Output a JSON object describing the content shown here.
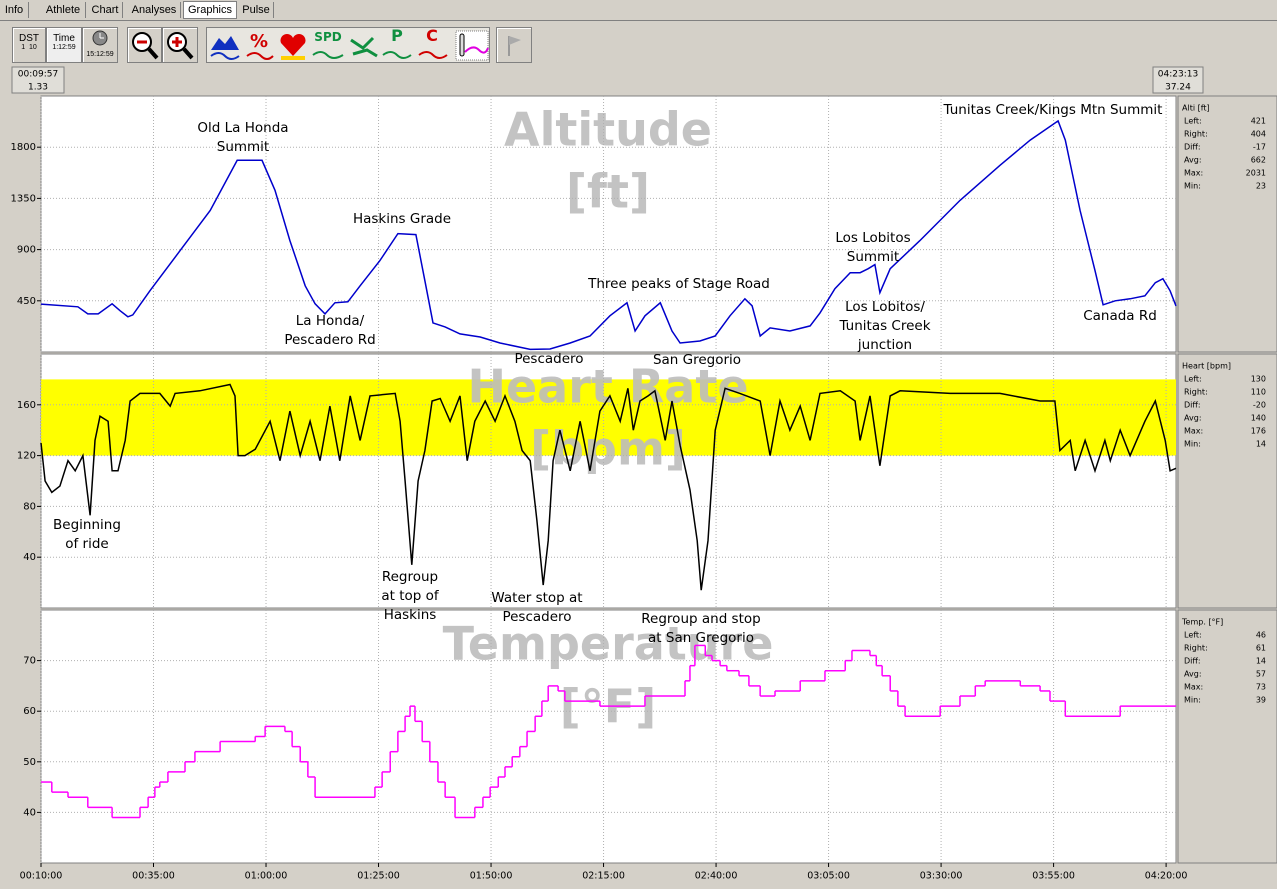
{
  "tabs": [
    "Info",
    "Athlete",
    "Chart",
    "Analyses",
    "Graphics",
    "Pulse"
  ],
  "toolbar": {
    "dst": [
      "DST",
      "1",
      "10"
    ],
    "time": [
      "Time",
      "1:12:59"
    ],
    "clock": "15:12:59",
    "icons": [
      "%",
      "SPD",
      "P",
      "C"
    ]
  },
  "range": {
    "start": [
      "00:09:57",
      "1.33"
    ],
    "end": [
      "04:23:13",
      "37.24"
    ]
  },
  "chart_data": [
    {
      "type": "line",
      "title": "Altitude",
      "unit": "[ft]",
      "xlim": [
        10,
        262.2
      ],
      "ylim": [
        0,
        2250
      ],
      "yticks": [
        450,
        900,
        1350,
        1800
      ],
      "grid": true,
      "series": [
        {
          "color": "#0000cc",
          "x": [
            10,
            18.2,
            20.4,
            22.7,
            25.8,
            27.6,
            29.3,
            30.4,
            34.2,
            40.9,
            47.6,
            53.6,
            59.1,
            62,
            65.3,
            68.7,
            70.9,
            73.1,
            75.3,
            78.2,
            80.9,
            85.3,
            89.3,
            93.3,
            95.3,
            97.1,
            99.8,
            103.1,
            107.6,
            112,
            118.7,
            123.1,
            127.6,
            132,
            136.4,
            140.2,
            142,
            144.2,
            147.6,
            150.2,
            152,
            156.4,
            159.8,
            163.1,
            166.4,
            168,
            169.8,
            172,
            176.4,
            180.9,
            183.1,
            186.4,
            189.8,
            192,
            193.8,
            195.3,
            196.4,
            198.7,
            205.3,
            214.2,
            223.1,
            229.8,
            236,
            237.6,
            240.9,
            244.2,
            246,
            248.7,
            252,
            255.3,
            257.6,
            259.3,
            260.9,
            262.2
          ],
          "values": [
            421,
            397,
            335,
            335,
            424,
            362,
            309,
            326,
            538,
            891,
            1244,
            1685,
            1685,
            1421,
            979,
            582,
            424,
            335,
            432,
            441,
            582,
            803,
            1041,
            1032,
            626,
            256,
            221,
            159,
            132,
            79,
            23,
            26,
            79,
            141,
            318,
            432,
            185,
            318,
            432,
            185,
            79,
            97,
            141,
            318,
            468,
            406,
            141,
            212,
            185,
            229,
            344,
            556,
            697,
            697,
            732,
            768,
            521,
            732,
            979,
            1332,
            1641,
            1862,
            2031,
            1862,
            1244,
            715,
            415,
            450,
            468,
            494,
            609,
            644,
            538,
            404
          ]
        }
      ],
      "annotations": [
        [
          "Old La Honda",
          "Summit"
        ],
        [
          "Haskins Grade"
        ],
        [
          "La Honda/",
          "Pescadero Rd"
        ],
        [
          "Three peaks of Stage Road"
        ],
        [
          "Pescadero"
        ],
        [
          "San Gregorio"
        ],
        [
          "Los Lobitos",
          "Summit"
        ],
        [
          "Los Lobitos/",
          "Tunitas Creek",
          "junction"
        ],
        [
          "Tunitas Creek/Kings Mtn Summit"
        ],
        [
          "Canada Rd"
        ]
      ],
      "stats": {
        "title": "Alti [ft]",
        "rows": [
          [
            "Left:",
            421
          ],
          [
            "Right:",
            404
          ],
          [
            "Diff:",
            -17
          ],
          [
            "Avg:",
            662
          ],
          [
            "Max:",
            2031
          ],
          [
            "Min:",
            23
          ]
        ]
      }
    },
    {
      "type": "line",
      "title": "Heart Rate",
      "unit": "[bpm]",
      "xlim": [
        10,
        262.2
      ],
      "ylim": [
        0,
        200
      ],
      "yticks": [
        40,
        80,
        120,
        160
      ],
      "grid": true,
      "zone": {
        "range": [
          120,
          180
        ],
        "color": "#ffff00"
      },
      "series": [
        {
          "color": "#000000",
          "x": [
            10,
            10.9,
            12.4,
            14.2,
            16,
            17.6,
            19.3,
            20.9,
            22,
            23.1,
            24.9,
            25.8,
            27.1,
            28.7,
            29.8,
            32,
            36.4,
            38.7,
            39.8,
            45.3,
            52,
            53.1,
            53.8,
            55.3,
            57.6,
            60.9,
            63.1,
            65.3,
            67.6,
            69.8,
            72,
            74.2,
            76.4,
            78.7,
            80.9,
            83.1,
            88.7,
            89.8,
            90.9,
            92.4,
            93.8,
            95.3,
            96.9,
            98.7,
            100.9,
            103.1,
            104.7,
            106.4,
            108.7,
            110.9,
            113.1,
            115.3,
            116.9,
            118.7,
            120.2,
            121.6,
            122.7,
            123.8,
            125.3,
            127.6,
            129.8,
            132,
            134.2,
            136.4,
            138.7,
            140.4,
            141.6,
            143.1,
            144.9,
            146.4,
            148.7,
            150.2,
            152,
            154.2,
            155.8,
            156.7,
            158.2,
            159.8,
            162,
            165.3,
            169.8,
            172,
            174.2,
            176.4,
            178.7,
            180.9,
            183.1,
            187.6,
            190.9,
            192,
            194.2,
            196.4,
            198.7,
            200.9,
            212,
            223.1,
            232,
            235.3,
            236.4,
            238.7,
            239.8,
            242,
            244.2,
            246.4,
            247.6,
            249.8,
            252,
            255.3,
            257.6,
            259.8,
            260.9,
            262.2
          ],
          "values": [
            130,
            100,
            91,
            96,
            116,
            108,
            120,
            73,
            132,
            151,
            147,
            108,
            108,
            132,
            163,
            169,
            169,
            159,
            169,
            171,
            176,
            167,
            120,
            120,
            125,
            147,
            116,
            155,
            120,
            147,
            116,
            159,
            116,
            167,
            132,
            167,
            169,
            147,
            100,
            34,
            100,
            124,
            163,
            165,
            147,
            167,
            116,
            147,
            163,
            147,
            167,
            147,
            124,
            116,
            69,
            18,
            53,
            116,
            140,
            108,
            147,
            108,
            155,
            167,
            147,
            173,
            140,
            163,
            167,
            171,
            132,
            163,
            128,
            93,
            53,
            14,
            53,
            140,
            173,
            169,
            163,
            120,
            163,
            140,
            159,
            132,
            169,
            171,
            163,
            132,
            167,
            112,
            167,
            171,
            169,
            169,
            163,
            163,
            124,
            132,
            108,
            132,
            108,
            132,
            116,
            140,
            120,
            147,
            163,
            132,
            108,
            110
          ]
        }
      ],
      "annotations": [
        [
          "Beginning",
          "of ride"
        ],
        [
          "Regroup",
          "at top of",
          "Haskins"
        ],
        [
          "Water stop at",
          "Pescadero"
        ],
        [
          "Regroup and stop",
          "at San Gregorio"
        ]
      ],
      "stats": {
        "title": "Heart [bpm]",
        "rows": [
          [
            "Left:",
            130
          ],
          [
            "Right:",
            110
          ],
          [
            "Diff:",
            -20
          ],
          [
            "Avg:",
            140
          ],
          [
            "Max:",
            176
          ],
          [
            "Min:",
            14
          ]
        ]
      }
    },
    {
      "type": "step",
      "title": "Temperature",
      "unit": "[°F]",
      "xlim": [
        10,
        262.2
      ],
      "ylim": [
        30,
        80
      ],
      "yticks": [
        40,
        50,
        60,
        70
      ],
      "grid": true,
      "xticks": [
        {
          "value": 10,
          "label": "00:10:00"
        },
        {
          "value": 35,
          "label": "00:35:00"
        },
        {
          "value": 60,
          "label": "01:00:00"
        },
        {
          "value": 85,
          "label": "01:25:00"
        },
        {
          "value": 110,
          "label": "01:50:00"
        },
        {
          "value": 135,
          "label": "02:15:00"
        },
        {
          "value": 160,
          "label": "02:40:00"
        },
        {
          "value": 185,
          "label": "03:05:00"
        },
        {
          "value": 210,
          "label": "03:30:00"
        },
        {
          "value": 235,
          "label": "03:55:00"
        },
        {
          "value": 260,
          "label": "04:20:00"
        }
      ],
      "series": [
        {
          "color": "#ff00ff",
          "x": [
            10,
            12.4,
            16,
            20.4,
            25.8,
            32,
            33.8,
            35.3,
            36.4,
            38.2,
            42,
            44.2,
            49.8,
            57.6,
            59.8,
            64.2,
            65.8,
            67.6,
            69.3,
            70.9,
            84.2,
            85.8,
            87.6,
            89.3,
            90.9,
            92,
            93.1,
            94.7,
            96.4,
            98.2,
            99.8,
            102,
            106.4,
            108.2,
            109.8,
            111.6,
            113.1,
            114.7,
            116.4,
            118,
            119.8,
            121.3,
            122.7,
            124.9,
            126.4,
            134.2,
            144.2,
            153.1,
            154.2,
            155.3,
            157.6,
            159.1,
            160.9,
            162.4,
            165.1,
            167.3,
            169.8,
            173.1,
            178.7,
            184.2,
            188.7,
            190.2,
            194.2,
            195.6,
            196.9,
            198.7,
            200.4,
            202,
            209.8,
            214.2,
            217.6,
            219.8,
            227.6,
            232,
            234.2,
            237.6,
            249.8
          ],
          "values": [
            46,
            44,
            43,
            41,
            39,
            41,
            43,
            45,
            46,
            48,
            50,
            52,
            54,
            55,
            57,
            56,
            53,
            50,
            47,
            43,
            45,
            48,
            52,
            56,
            59,
            61,
            58,
            54,
            50,
            46,
            43,
            39,
            41,
            43,
            45,
            47,
            49,
            51,
            53,
            56,
            59,
            62,
            65,
            64,
            62,
            61,
            63,
            66,
            69,
            73,
            71,
            70,
            69,
            68,
            67,
            65,
            63,
            64,
            66,
            68,
            70,
            72,
            71,
            69,
            67,
            64,
            61,
            59,
            61,
            63,
            65,
            66,
            65,
            64,
            62,
            59,
            61
          ]
        }
      ],
      "stats": {
        "title": "Temp. [°F]",
        "rows": [
          [
            "Left:",
            46
          ],
          [
            "Right:",
            61
          ],
          [
            "Diff:",
            14
          ],
          [
            "Avg:",
            57
          ],
          [
            "Max:",
            73
          ],
          [
            "Min:",
            39
          ]
        ]
      }
    }
  ]
}
